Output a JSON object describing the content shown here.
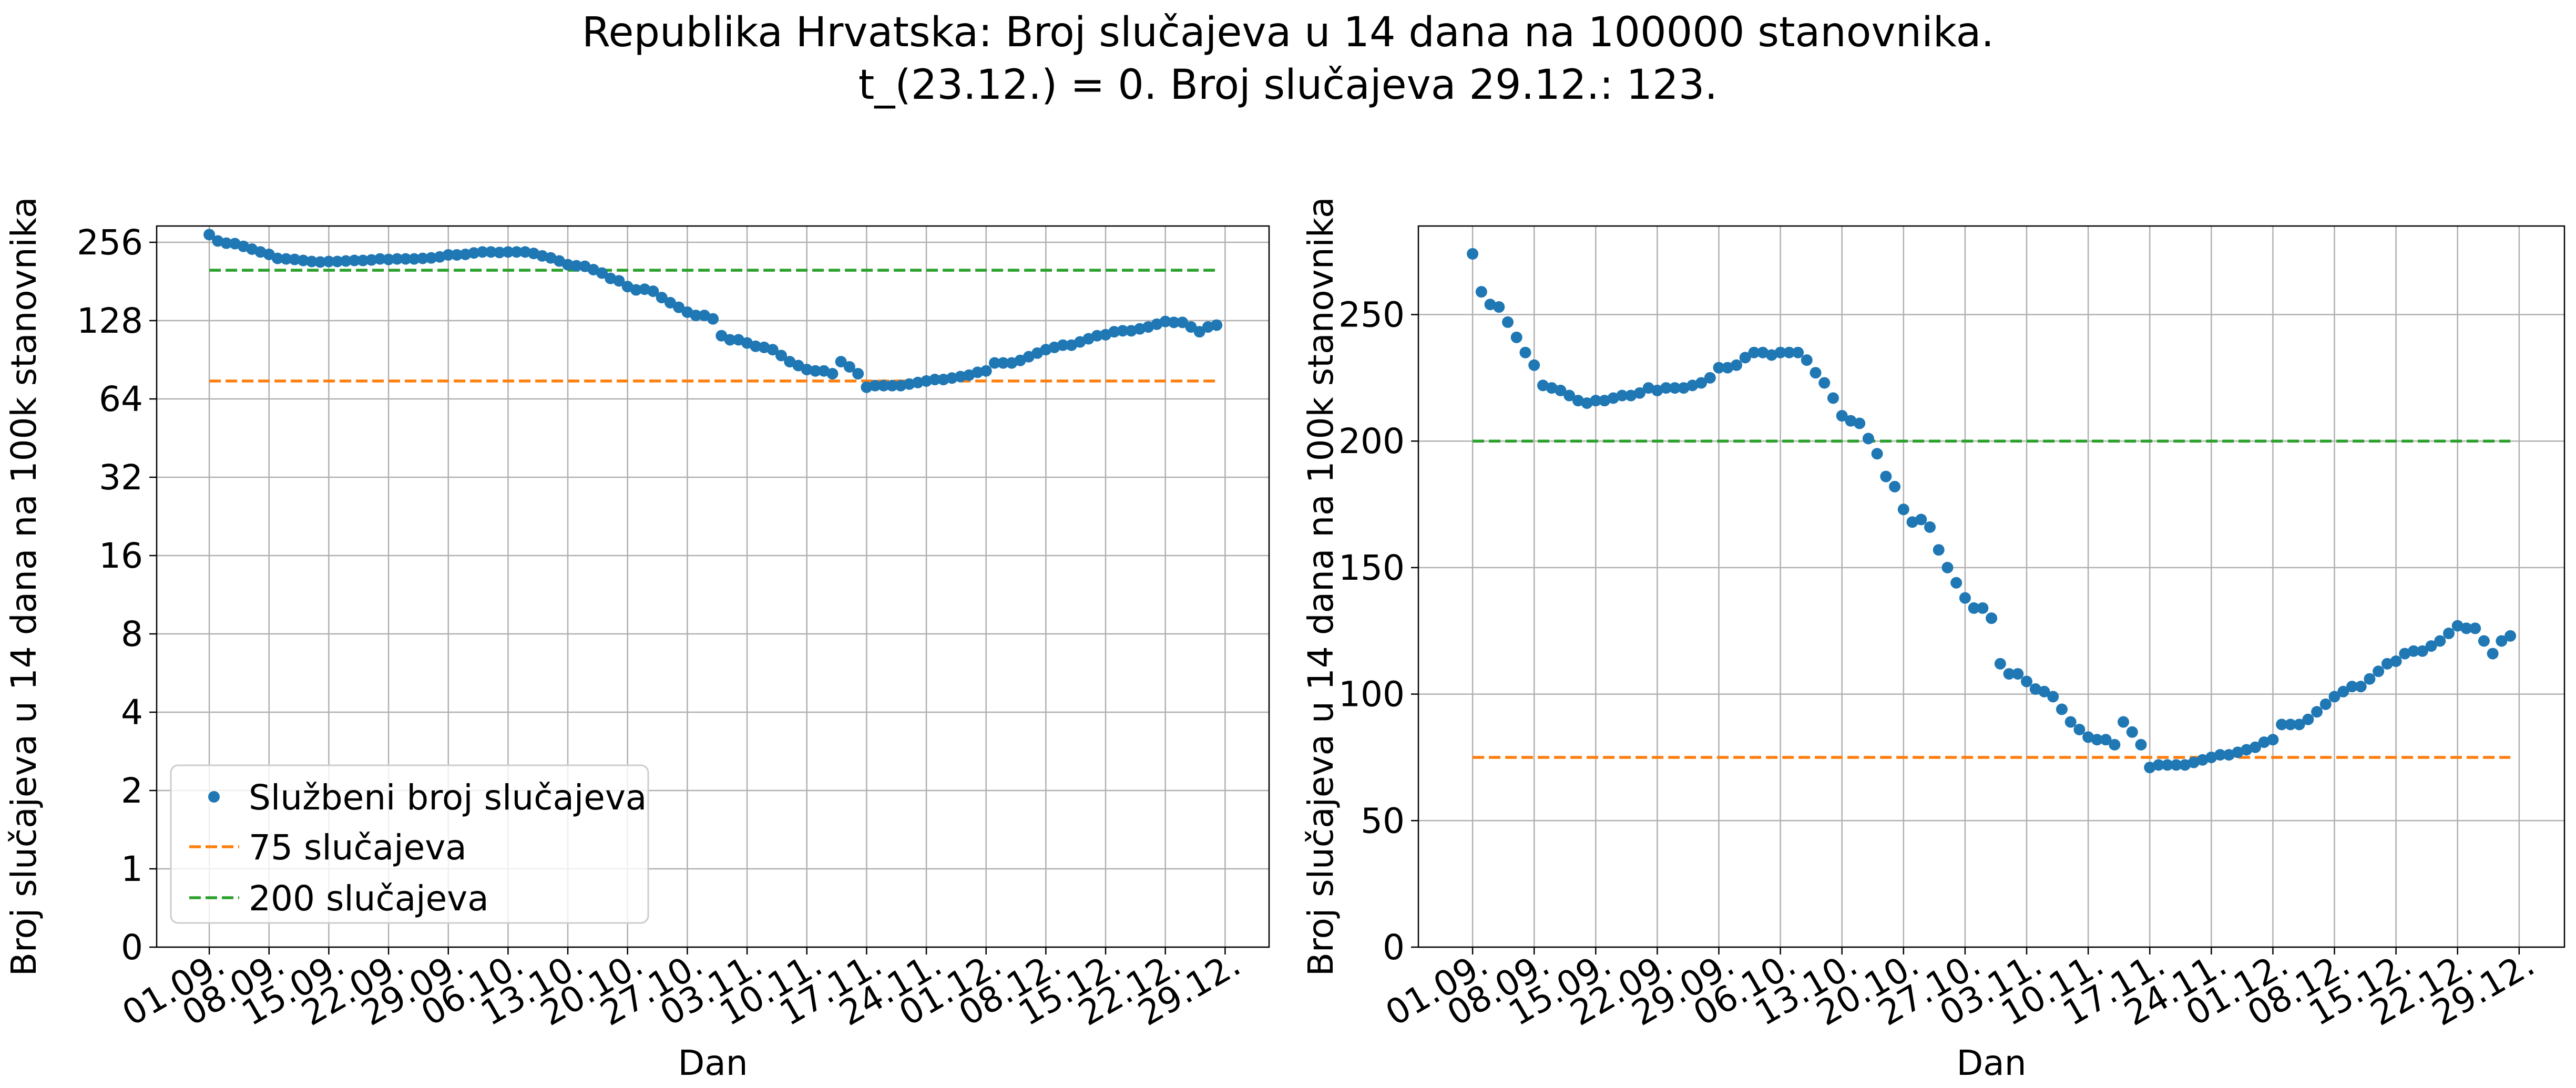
{
  "figure": {
    "title_line1": "Republika Hrvatska: Broj slučajeva u 14 dana na 100000 stanovnika.",
    "title_line2": "t_(23.12.) = 0. Broj slučajeva 29.12.: 123."
  },
  "colors": {
    "points": "#1f77b4",
    "line75": "#ff7f0e",
    "line200": "#2ca02c",
    "grid": "#b0b0b0"
  },
  "chart_data": [
    {
      "type": "scatter",
      "yscale": "log2",
      "xlabel": "Dan",
      "ylabel": "Broj slučajeva u 14 dana na 100k stanovnika",
      "x_ticks": [
        "01.09.",
        "08.09.",
        "15.09.",
        "22.09.",
        "29.09.",
        "06.10.",
        "13.10.",
        "20.10.",
        "27.10.",
        "03.11.",
        "10.11.",
        "17.11.",
        "24.11.",
        "01.12.",
        "08.12.",
        "15.12.",
        "22.12.",
        "29.12."
      ],
      "y_ticks": [
        "0",
        "1",
        "2",
        "4",
        "8",
        "16",
        "32",
        "64",
        "128",
        "256"
      ],
      "grid": true,
      "legend": {
        "position": "lower-left",
        "entries": [
          "Službeni broj slučajeva",
          "75 slučajeva",
          "200 slučajeva"
        ]
      }
    },
    {
      "type": "scatter",
      "yscale": "linear",
      "ylim": [
        0,
        285
      ],
      "xlabel": "Dan",
      "ylabel": "Broj slučajeva u 14 dana na 100k stanovnika",
      "x_ticks": [
        "01.09.",
        "08.09.",
        "15.09.",
        "22.09.",
        "29.09.",
        "06.10.",
        "13.10.",
        "20.10.",
        "27.10.",
        "03.11.",
        "10.11.",
        "17.11.",
        "24.11.",
        "01.12.",
        "08.12.",
        "15.12.",
        "22.12.",
        "29.12."
      ],
      "y_ticks": [
        "0",
        "50",
        "100",
        "150",
        "200",
        "250"
      ],
      "grid": true
    }
  ],
  "series": {
    "name": "Službeni broj slučajeva",
    "start_date": "01.09.",
    "end_date": "29.12.",
    "values": [
      274,
      259,
      254,
      253,
      247,
      241,
      235,
      230,
      222,
      221,
      220,
      218,
      216,
      215,
      216,
      216,
      217,
      218,
      218,
      219,
      221,
      220,
      221,
      221,
      221,
      222,
      223,
      225,
      229,
      229,
      230,
      233,
      235,
      235,
      234,
      235,
      235,
      235,
      232,
      227,
      223,
      217,
      210,
      208,
      207,
      201,
      195,
      186,
      182,
      173,
      168,
      169,
      166,
      157,
      150,
      144,
      138,
      134,
      134,
      130,
      112,
      108,
      108,
      105,
      102,
      101,
      99,
      94,
      89,
      86,
      83,
      82,
      82,
      80,
      89,
      85,
      80,
      71,
      72,
      72,
      72,
      72,
      73,
      74,
      75,
      76,
      76,
      77,
      78,
      79,
      81,
      82,
      88,
      88,
      88,
      90,
      93,
      96,
      99,
      101,
      103,
      103,
      106,
      109,
      112,
      113,
      116,
      117,
      117,
      119,
      121,
      124,
      127,
      126,
      126,
      121,
      116,
      121,
      123
    ]
  },
  "reference_lines": [
    {
      "name": "75 slučajeva",
      "value": 75
    },
    {
      "name": "200 slučajeva",
      "value": 200
    }
  ]
}
